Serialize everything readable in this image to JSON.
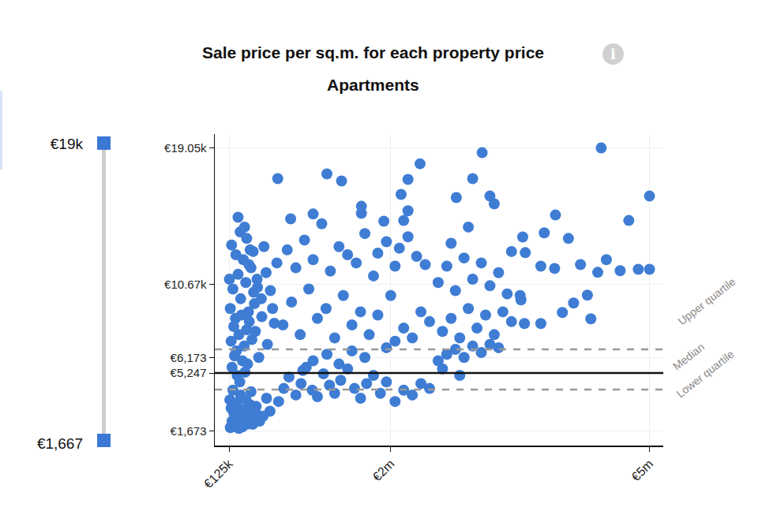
{
  "chart_data": {
    "type": "scatter",
    "title": "Sale price per sq.m. for each property price",
    "subtitle": "Apartments",
    "info_icon": "i",
    "range_slider": {
      "max_label": "€19k",
      "min_label": "€1,667",
      "color": "#3b78d6"
    },
    "color": "#3f7dd4",
    "marker": "circle",
    "grid": true,
    "xlim": [
      -40000,
      5160000
    ],
    "xticks": [
      {
        "value": 125000,
        "label": "€125k"
      },
      {
        "value": 2000000,
        "label": "€2m"
      },
      {
        "value": 5000000,
        "label": "€5m"
      }
    ],
    "ylim": [
      800,
      19900
    ],
    "yticks": [
      {
        "value": 1673,
        "label": "€1,673"
      },
      {
        "value": 5247,
        "label": "€5,247"
      },
      {
        "value": 6173,
        "label": "€6,173"
      },
      {
        "value": 10670,
        "label": "€10.67k"
      },
      {
        "value": 19050,
        "label": "€19.05k"
      }
    ],
    "reference_lines": [
      {
        "label": "Upper quartile",
        "value": 6700,
        "line_style": "dashed",
        "color": "#999999"
      },
      {
        "label": "Median",
        "value": 5247,
        "line_style": "solid",
        "color": "#111111"
      },
      {
        "label": "Lower quartile",
        "value": 4230,
        "line_style": "dashed",
        "color": "#999999"
      }
    ],
    "x": [
      140000,
      160000,
      190000,
      220000,
      250000,
      280000,
      310000,
      350000,
      400000,
      450000,
      150000,
      180000,
      210000,
      240000,
      270000,
      300000,
      330000,
      370000,
      420000,
      480000,
      135000,
      170000,
      200000,
      260000,
      320000,
      380000,
      440000,
      520000,
      560000,
      600000,
      140000,
      170000,
      200000,
      230000,
      260000,
      290000,
      320000,
      350000,
      380000,
      410000,
      150000,
      180000,
      210000,
      240000,
      270000,
      300000,
      330000,
      360000,
      390000,
      420000,
      160000,
      190000,
      220000,
      250000,
      280000,
      310000,
      340000,
      370000,
      450000,
      500000,
      155000,
      205000,
      255000,
      305000,
      355000,
      405000,
      455000,
      505000,
      555000,
      605000,
      130000,
      230000,
      330000,
      430000,
      530000,
      630000,
      680000,
      470000,
      570000,
      650000,
      700000,
      760000,
      820000,
      900000,
      960000,
      1020000,
      1090000,
      1150000,
      1220000,
      1290000,
      1350000,
      1420000,
      1500000,
      1580000,
      1650000,
      1720000,
      1800000,
      1880000,
      1950000,
      2050000,
      2150000,
      2250000,
      2350000,
      2450000,
      1700000,
      1550000,
      1400000,
      1260000,
      1100000,
      980000,
      750000,
      850000,
      950000,
      1050000,
      1150000,
      1250000,
      1350000,
      1450000,
      1550000,
      1650000,
      1750000,
      1850000,
      1950000,
      2050000,
      2150000,
      2250000,
      2350000,
      2450000,
      1800000,
      2000000,
      800000,
      900000,
      1000000,
      1100000,
      1200000,
      1300000,
      1400000,
      1500000,
      1600000,
      1700000,
      1850000,
      1950000,
      2050000,
      2100000,
      2200000,
      2300000,
      2400000,
      2200000,
      2150000,
      2120000,
      690000,
      1260000,
      1430000,
      1660000,
      1660000,
      1920000,
      2340000,
      2200000,
      840000,
      1100000,
      2550000,
      2650000,
      2750000,
      2850000,
      2950000,
      3050000,
      3150000,
      3250000,
      2600000,
      2800000,
      2600000,
      2700000,
      2800000,
      2900000,
      3000000,
      3100000,
      3200000,
      3300000,
      3400000,
      3500000,
      2550000,
      2650000,
      2750000,
      2850000,
      2950000,
      3050000,
      3150000,
      3250000,
      3350000,
      2700000,
      3060000,
      2760000,
      2950000,
      3150000,
      3200000,
      4440000,
      5000000,
      4760000,
      3910000,
      2900000,
      4870000,
      5000000,
      4660000,
      4400000,
      4060000,
      3780000,
      3530000,
      3560000,
      3740000,
      3900000,
      4280000,
      4120000,
      4320000,
      3990000,
      3740000,
      3510000,
      3550000,
      4200000,
      4500000,
      3400000
    ],
    "values": [
      1900,
      2300,
      2000,
      2600,
      2200,
      1950,
      2800,
      2400,
      2100,
      2700,
      3100,
      2800,
      3400,
      1850,
      3000,
      2500,
      2100,
      3300,
      2900,
      2300,
      3600,
      4200,
      2500,
      3900,
      3600,
      4100,
      3200,
      2600,
      3700,
      2900,
      9200,
      10400,
      8600,
      11300,
      9800,
      12200,
      10800,
      9000,
      11700,
      10200,
      7200,
      8100,
      6600,
      7600,
      8800,
      6900,
      7900,
      8400,
      7300,
      9500,
      5600,
      6300,
      5100,
      4700,
      6000,
      5300,
      5800,
      12800,
      11000,
      9800,
      13100,
      12500,
      13900,
      14200,
      11900,
      12700,
      10500,
      8700,
      11400,
      10300,
      11000,
      14800,
      13500,
      7800,
      13000,
      9200,
      12000,
      6200,
      7000,
      8300,
      3500,
      4300,
      5000,
      3900,
      4600,
      5600,
      4200,
      3800,
      5200,
      4500,
      4000,
      4800,
      5500,
      4300,
      3700,
      4600,
      5100,
      4000,
      4700,
      3500,
      4200,
      3900,
      4600,
      4300,
      6200,
      6600,
      5800,
      6400,
      6000,
      5400,
      8200,
      9600,
      7600,
      10400,
      8600,
      9200,
      7400,
      10000,
      8200,
      9000,
      7600,
      8800,
      6800,
      7200,
      8000,
      7400,
      9000,
      8400,
      11200,
      10000,
      12800,
      11700,
      13400,
      12200,
      14400,
      11500,
      13000,
      12500,
      12000,
      13800,
      12600,
      13300,
      11800,
      12900,
      13600,
      12400,
      11900,
      15200,
      14600,
      16200,
      17165,
      17455,
      17020,
      15470,
      15040,
      14560,
      18080,
      17120,
      14700,
      15000,
      6000,
      6400,
      6700,
      6200,
      6900,
      6500,
      7000,
      6800,
      5500,
      5100,
      7800,
      8600,
      7400,
      9200,
      8000,
      8800,
      7600,
      9000,
      8400,
      10000,
      10800,
      11800,
      10300,
      12300,
      11000,
      12000,
      10600,
      11400,
      10100,
      13200,
      18760,
      16010,
      17165,
      16100,
      15620,
      19050,
      16100,
      14600,
      14940,
      14200,
      11610,
      11610,
      11520,
      11420,
      13500,
      13840,
      13590,
      12630,
      11800,
      11660,
      10020,
      9540,
      8570,
      8960,
      8280,
      9730,
      8280,
      11900,
      12200,
      12700
    ]
  }
}
